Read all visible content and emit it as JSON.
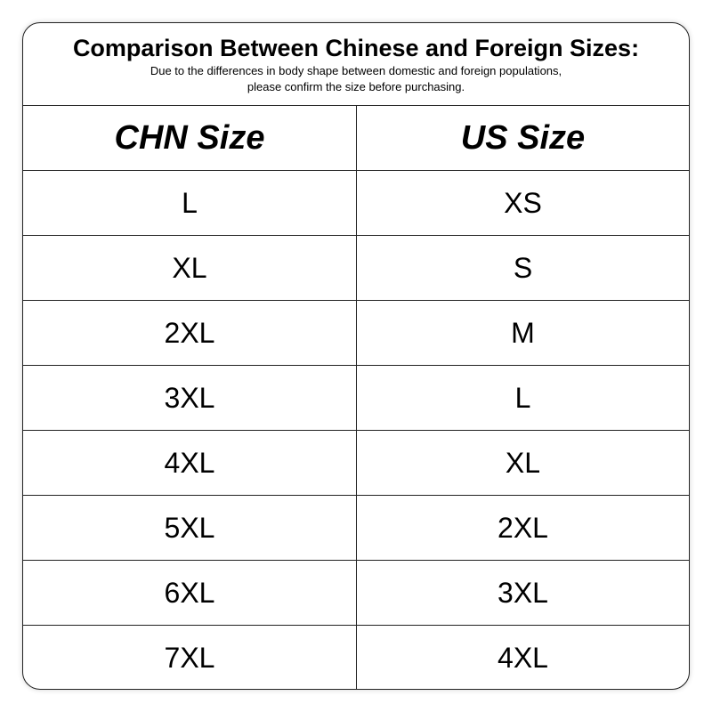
{
  "title": "Comparison Between Chinese and Foreign Sizes:",
  "subtitle_line1": "Due to the differences in body shape between domestic and foreign populations,",
  "subtitle_line2": "please confirm the size before purchasing.",
  "columns": [
    "CHN Size",
    "US Size"
  ],
  "rows": [
    [
      "L",
      "XS"
    ],
    [
      "XL",
      "S"
    ],
    [
      "2XL",
      "M"
    ],
    [
      "3XL",
      "L"
    ],
    [
      "4XL",
      "XL"
    ],
    [
      "5XL",
      "2XL"
    ],
    [
      "6XL",
      "3XL"
    ],
    [
      "7XL",
      "4XL"
    ]
  ]
}
